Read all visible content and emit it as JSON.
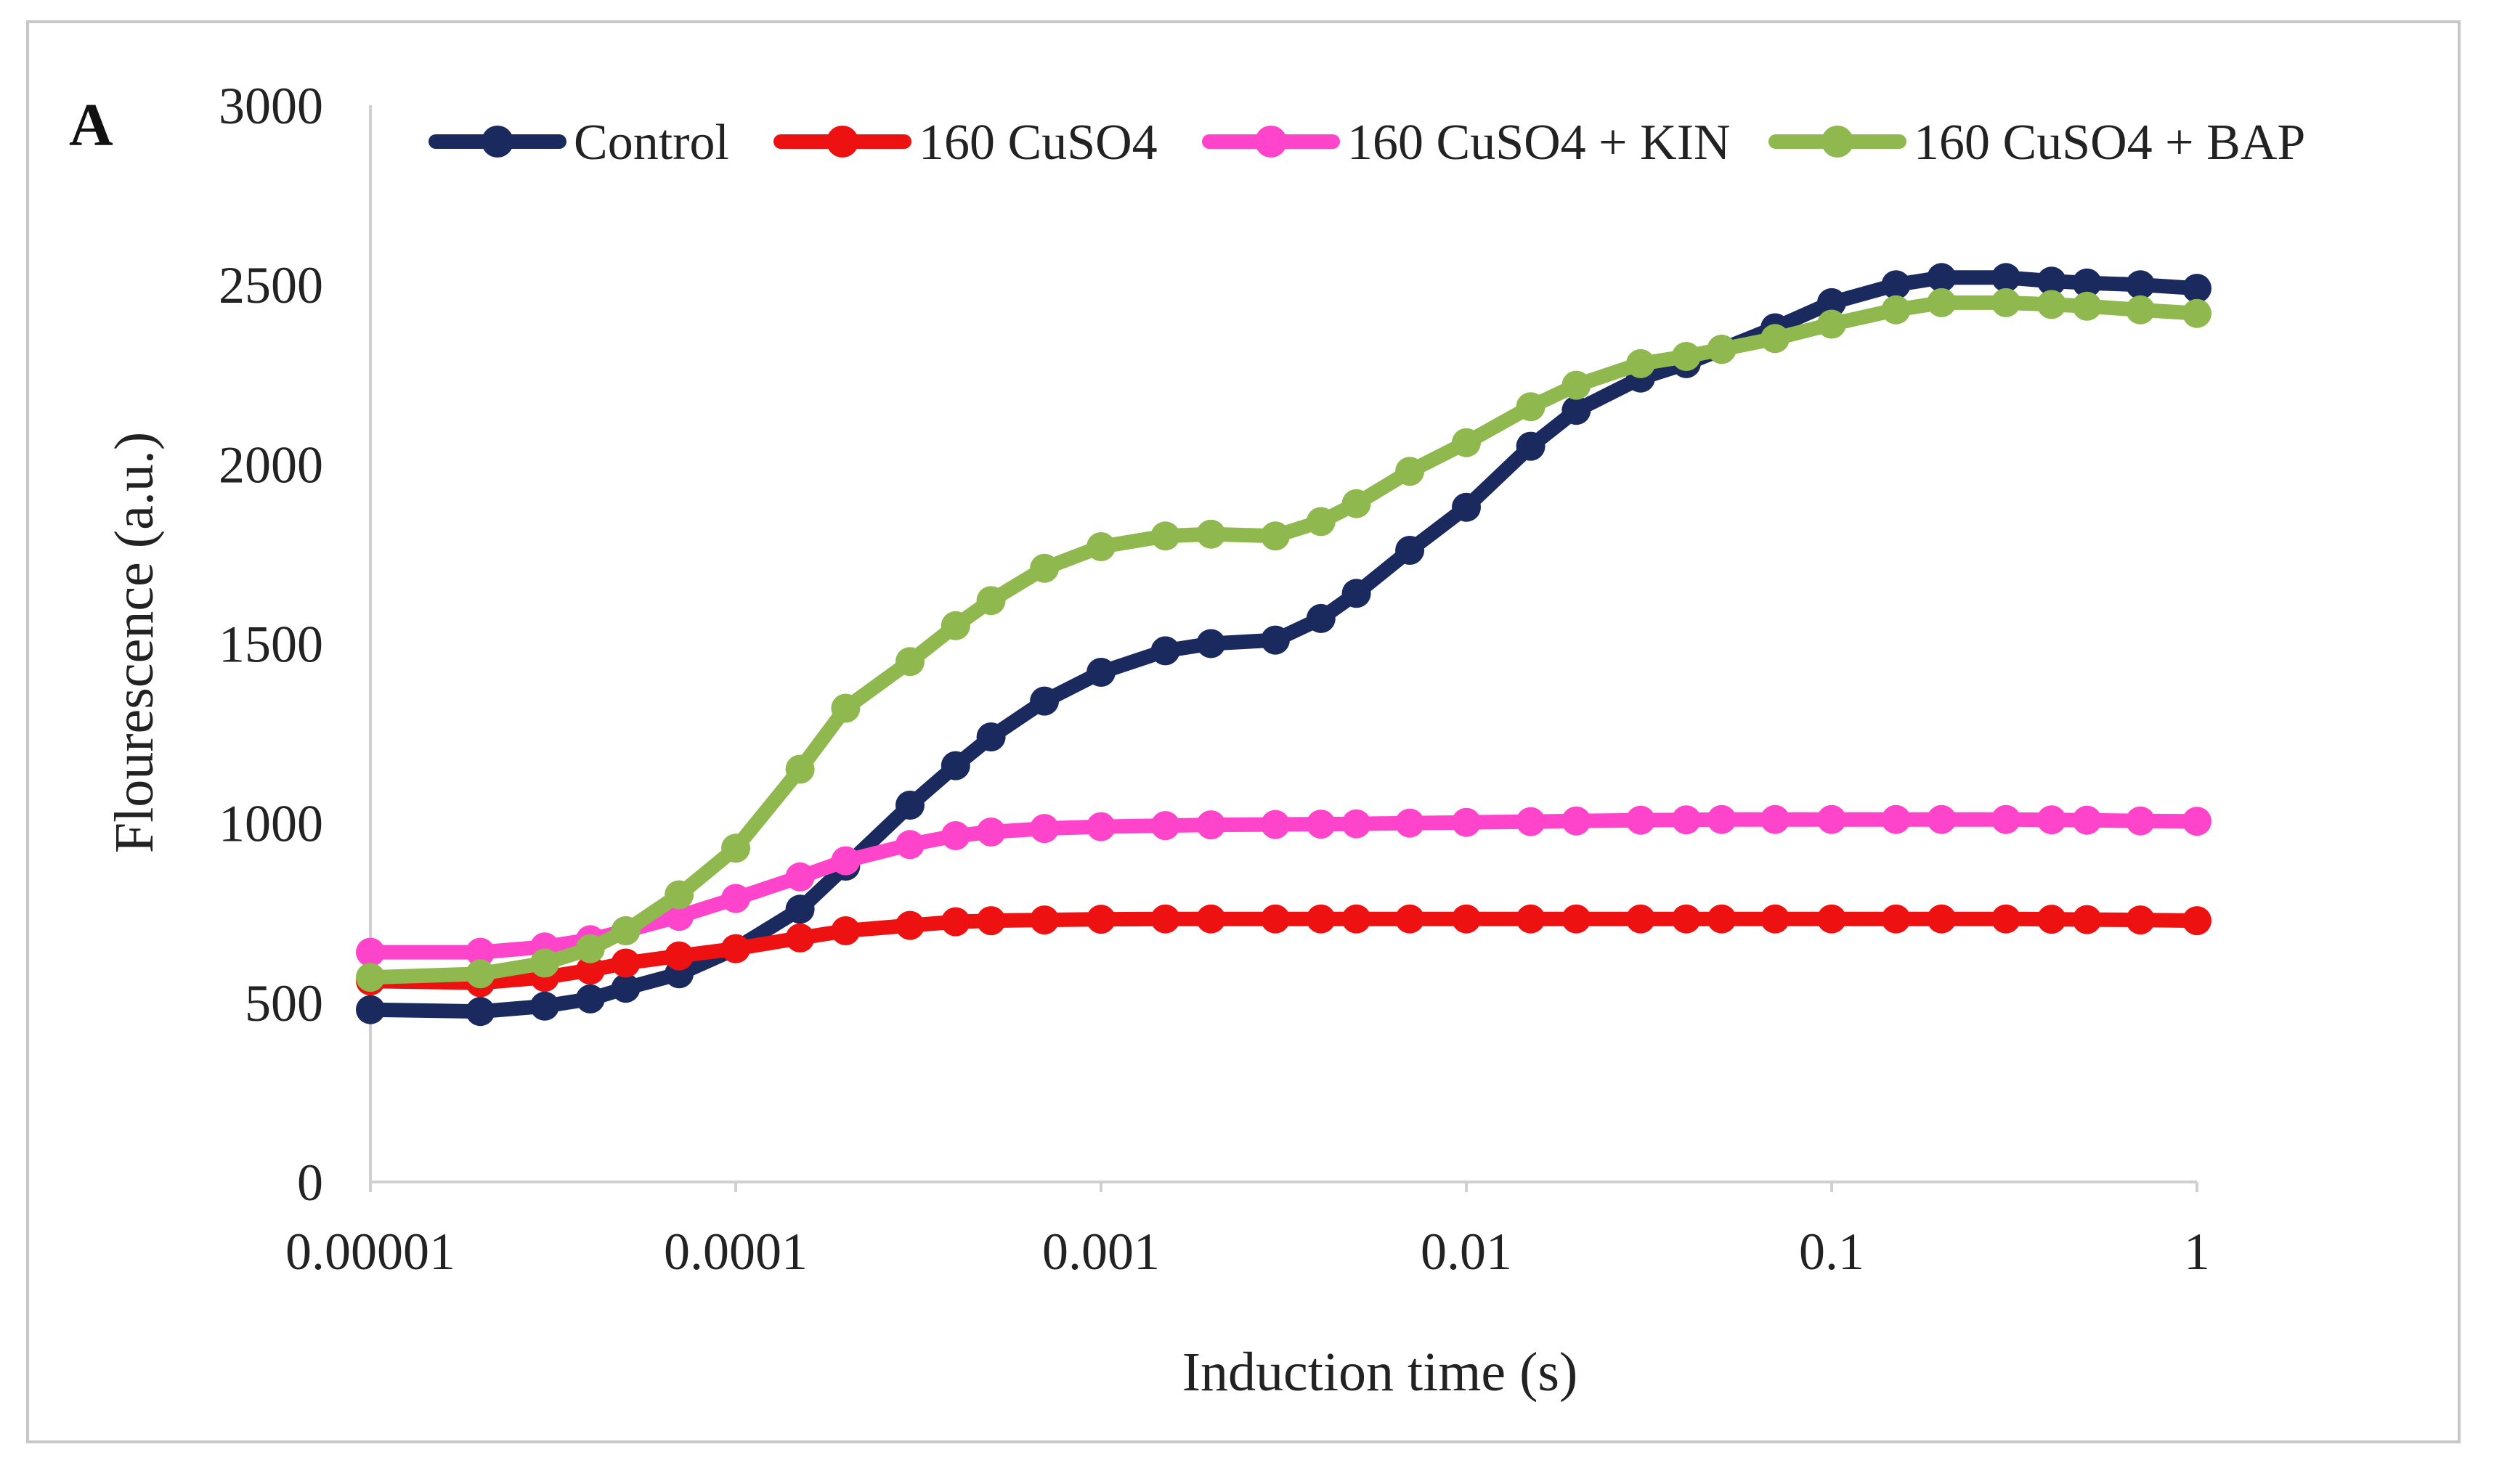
{
  "chart_data": {
    "type": "line",
    "panel_label": "A",
    "title": "",
    "xlabel": "Induction time (s)",
    "ylabel": "Flourescence (a.u.)",
    "xscale": "log",
    "xlim": [
      1e-05,
      1
    ],
    "ylim": [
      0,
      3000
    ],
    "x_ticks": [
      1e-05,
      0.0001,
      0.001,
      0.01,
      0.1,
      1
    ],
    "x_tick_labels": [
      "0.00001",
      "0.0001",
      "0.001",
      "0.01",
      "0.1",
      "1"
    ],
    "y_ticks": [
      0,
      500,
      1000,
      1500,
      2000,
      2500,
      3000
    ],
    "y_tick_labels": [
      "0",
      "500",
      "1000",
      "1500",
      "2000",
      "2500",
      "3000"
    ],
    "grid": false,
    "legend_position": "top",
    "x": [
      1e-05,
      2e-05,
      3e-05,
      4e-05,
      5e-05,
      7e-05,
      0.0001,
      0.00015,
      0.0002,
      0.0003,
      0.0004,
      0.0005,
      0.0007,
      0.001,
      0.0015,
      0.002,
      0.003,
      0.004,
      0.005,
      0.007,
      0.01,
      0.015,
      0.02,
      0.03,
      0.04,
      0.05,
      0.07,
      0.1,
      0.15,
      0.2,
      0.3,
      0.4,
      0.5,
      0.7,
      1
    ],
    "series": [
      {
        "name": "Control",
        "color": "#1a2a5e",
        "values": [
          480,
          475,
          490,
          510,
          540,
          580,
          650,
          760,
          880,
          1050,
          1160,
          1240,
          1340,
          1420,
          1480,
          1500,
          1510,
          1570,
          1640,
          1760,
          1880,
          2050,
          2150,
          2240,
          2280,
          2320,
          2380,
          2450,
          2500,
          2520,
          2520,
          2510,
          2505,
          2500,
          2490
        ]
      },
      {
        "name": "160 CuSO4",
        "color": "#ee1111",
        "values": [
          560,
          555,
          570,
          590,
          610,
          630,
          650,
          680,
          700,
          715,
          725,
          728,
          730,
          732,
          733,
          733,
          733,
          733,
          733,
          733,
          733,
          733,
          733,
          733,
          733,
          733,
          733,
          733,
          733,
          733,
          733,
          732,
          731,
          730,
          728
        ]
      },
      {
        "name": "160 CuSO4 + KIN",
        "color": "#ff44cc",
        "values": [
          640,
          640,
          655,
          675,
          700,
          740,
          790,
          850,
          895,
          940,
          965,
          975,
          985,
          990,
          993,
          995,
          996,
          997,
          998,
          1000,
          1002,
          1004,
          1006,
          1008,
          1009,
          1010,
          1010,
          1010,
          1010,
          1010,
          1010,
          1009,
          1008,
          1006,
          1005
        ]
      },
      {
        "name": "160 CuSO4 + BAP",
        "color": "#8fb84e",
        "values": [
          570,
          580,
          610,
          650,
          700,
          800,
          930,
          1150,
          1320,
          1450,
          1550,
          1620,
          1710,
          1770,
          1800,
          1805,
          1800,
          1840,
          1890,
          1980,
          2060,
          2160,
          2220,
          2280,
          2300,
          2320,
          2350,
          2390,
          2430,
          2450,
          2450,
          2445,
          2440,
          2430,
          2420
        ]
      }
    ]
  }
}
